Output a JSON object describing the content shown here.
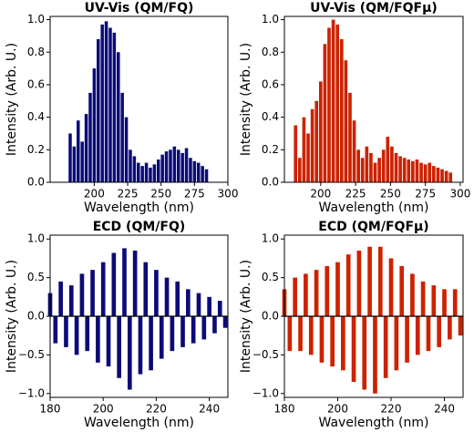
{
  "chart_data": [
    {
      "type": "bar",
      "title": "UV-Vis (QM/FQ)",
      "xlabel": "Wavelength (nm)",
      "ylabel": "Intensity (Arb. U.)",
      "color": "#0b0b78",
      "x": [
        182,
        185,
        188,
        191,
        194,
        197,
        200,
        203,
        206,
        209,
        212,
        215,
        218,
        221,
        224,
        227,
        230,
        233,
        236,
        239,
        242,
        245,
        248,
        251,
        254,
        257,
        260,
        263,
        266,
        269,
        272,
        275,
        278,
        281,
        284
      ],
      "values": [
        0.3,
        0.22,
        0.38,
        0.25,
        0.42,
        0.55,
        0.7,
        0.88,
        0.97,
        0.99,
        0.95,
        0.92,
        0.8,
        0.55,
        0.4,
        0.2,
        0.16,
        0.12,
        0.1,
        0.12,
        0.09,
        0.11,
        0.14,
        0.17,
        0.19,
        0.2,
        0.22,
        0.2,
        0.18,
        0.21,
        0.15,
        0.13,
        0.12,
        0.1,
        0.08
      ],
      "xlim": [
        167,
        300
      ],
      "ylim": [
        0,
        1.02
      ],
      "xticks": [
        200,
        225,
        250,
        275,
        300
      ],
      "yticks": [
        {
          "value": 0,
          "label": "0.0"
        },
        {
          "value": 0.2,
          "label": "0.2"
        },
        {
          "value": 0.4,
          "label": "0.4"
        },
        {
          "value": 0.6,
          "label": "0.6"
        },
        {
          "value": 0.8,
          "label": "0.8"
        },
        {
          "value": 1,
          "label": "1.0"
        }
      ]
    },
    {
      "type": "bar",
      "title": "UV-Vis (QM/FQFμ)",
      "xlabel": "Wavelength (nm)",
      "ylabel": "Intensity (Arb. U.)",
      "color": "#cc2200",
      "x": [
        182,
        185,
        188,
        191,
        194,
        197,
        200,
        203,
        206,
        209,
        212,
        215,
        218,
        221,
        224,
        227,
        230,
        233,
        236,
        239,
        242,
        245,
        248,
        251,
        254,
        257,
        260,
        263,
        266,
        269,
        272,
        275,
        278,
        281,
        284,
        287,
        290,
        293
      ],
      "values": [
        0.35,
        0.15,
        0.4,
        0.3,
        0.45,
        0.5,
        0.62,
        0.85,
        0.95,
        1.0,
        0.97,
        0.88,
        0.75,
        0.55,
        0.38,
        0.2,
        0.15,
        0.22,
        0.18,
        0.12,
        0.15,
        0.2,
        0.28,
        0.22,
        0.18,
        0.16,
        0.15,
        0.14,
        0.13,
        0.14,
        0.12,
        0.11,
        0.12,
        0.1,
        0.09,
        0.08,
        0.07,
        0.06
      ],
      "xlim": [
        174,
        302
      ],
      "ylim": [
        0,
        1.02
      ],
      "xticks": [
        200,
        225,
        250,
        275,
        300
      ],
      "yticks": [
        {
          "value": 0,
          "label": "0.0"
        },
        {
          "value": 0.2,
          "label": "0.2"
        },
        {
          "value": 0.4,
          "label": "0.4"
        },
        {
          "value": 0.6,
          "label": "0.6"
        },
        {
          "value": 0.8,
          "label": "0.8"
        },
        {
          "value": 1,
          "label": "1.0"
        }
      ]
    },
    {
      "type": "bar",
      "title": "ECD (QM/FQ)",
      "xlabel": "Wavelength (nm)",
      "ylabel": "Intensity (Arb. U.)",
      "color": "#0b0b78",
      "x": [
        180,
        182,
        184,
        186,
        188,
        190,
        192,
        194,
        196,
        198,
        200,
        202,
        204,
        206,
        208,
        210,
        212,
        214,
        216,
        218,
        220,
        222,
        224,
        226,
        228,
        230,
        232,
        234,
        236,
        238,
        240,
        242,
        244,
        246
      ],
      "values": [
        0.3,
        -0.35,
        0.45,
        -0.4,
        0.4,
        -0.5,
        0.55,
        -0.45,
        0.6,
        -0.6,
        0.7,
        -0.65,
        0.82,
        -0.8,
        0.88,
        -0.95,
        0.85,
        -0.75,
        0.7,
        -0.7,
        0.6,
        -0.55,
        0.5,
        -0.45,
        0.45,
        -0.4,
        0.35,
        -0.35,
        0.3,
        -0.3,
        0.25,
        -0.22,
        0.2,
        -0.15
      ],
      "xlim": [
        180,
        247
      ],
      "ylim": [
        -1.05,
        1.05
      ],
      "xticks": [
        180,
        200,
        220,
        240
      ],
      "yticks": [
        {
          "value": -1,
          "label": "−1.0"
        },
        {
          "value": -0.5,
          "label": "−0.5"
        },
        {
          "value": 0,
          "label": "0.0"
        },
        {
          "value": 0.5,
          "label": "0.5"
        },
        {
          "value": 1,
          "label": "1.0"
        }
      ]
    },
    {
      "type": "bar",
      "title": "ECD (QM/FQFμ)",
      "xlabel": "Wavelength (nm)",
      "ylabel": "Intensity (Arb. U.)",
      "color": "#cc2200",
      "x": [
        180,
        182,
        184,
        186,
        188,
        190,
        192,
        194,
        196,
        198,
        200,
        202,
        204,
        206,
        208,
        210,
        212,
        214,
        216,
        218,
        220,
        222,
        224,
        226,
        228,
        230,
        232,
        234,
        236,
        238,
        240,
        242,
        244,
        246
      ],
      "values": [
        0.35,
        -0.45,
        0.5,
        -0.45,
        0.55,
        -0.5,
        0.6,
        -0.6,
        0.65,
        -0.65,
        0.7,
        -0.7,
        0.8,
        -0.85,
        0.85,
        -0.95,
        0.9,
        -1.0,
        0.9,
        -0.8,
        0.75,
        -0.7,
        0.65,
        -0.6,
        0.55,
        -0.5,
        0.45,
        -0.45,
        0.4,
        -0.4,
        0.35,
        -0.3,
        0.35,
        -0.25
      ],
      "xlim": [
        180,
        247
      ],
      "ylim": [
        -1.05,
        1.05
      ],
      "xticks": [
        180,
        200,
        220,
        240
      ],
      "yticks": [
        {
          "value": -1,
          "label": "−1.0"
        },
        {
          "value": -0.5,
          "label": "−0.5"
        },
        {
          "value": 0,
          "label": "0.0"
        },
        {
          "value": 0.5,
          "label": "0.5"
        },
        {
          "value": 1,
          "label": "1.0"
        }
      ]
    }
  ]
}
